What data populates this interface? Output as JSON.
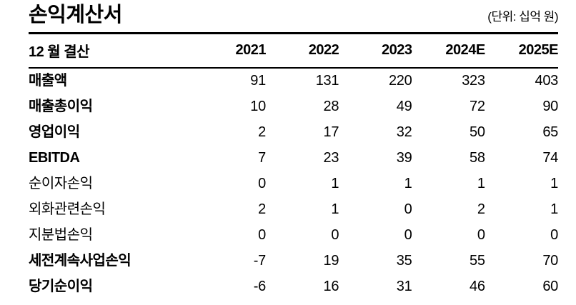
{
  "colors": {
    "background": "#ffffff",
    "text": "#000000",
    "rule_line": "#000000"
  },
  "document": {
    "title": "손익계산서",
    "unit_note": "(단위: 십억 원)"
  },
  "table": {
    "header": [
      "12 월 결산",
      "2021",
      "2022",
      "2023",
      "2024E",
      "2025E"
    ],
    "rows": [
      {
        "label": "매출액",
        "bold": true,
        "values": [
          "91",
          "131",
          "220",
          "323",
          "403"
        ]
      },
      {
        "label": "매출총이익",
        "bold": true,
        "values": [
          "10",
          "28",
          "49",
          "72",
          "90"
        ]
      },
      {
        "label": "영업이익",
        "bold": true,
        "values": [
          "2",
          "17",
          "32",
          "50",
          "65"
        ]
      },
      {
        "label": "EBITDA",
        "bold": true,
        "values": [
          "7",
          "23",
          "39",
          "58",
          "74"
        ]
      },
      {
        "label": "순이자손익",
        "bold": false,
        "values": [
          "0",
          "1",
          "1",
          "1",
          "1"
        ]
      },
      {
        "label": "외화관련손익",
        "bold": false,
        "values": [
          "2",
          "1",
          "0",
          "2",
          "1"
        ]
      },
      {
        "label": "지분법손익",
        "bold": false,
        "values": [
          "0",
          "0",
          "0",
          "0",
          "0"
        ]
      },
      {
        "label": "세전계속사업손익",
        "bold": true,
        "values": [
          "-7",
          "19",
          "35",
          "55",
          "70"
        ]
      },
      {
        "label": "당기순이익",
        "bold": true,
        "values": [
          "-6",
          "16",
          "31",
          "46",
          "60"
        ]
      }
    ]
  },
  "chart_data": {
    "type": "table",
    "title": "손익계산서",
    "unit": "(단위: 십억 원)",
    "categories": [
      "2021",
      "2022",
      "2023",
      "2024E",
      "2025E"
    ],
    "series": [
      {
        "name": "매출액",
        "values": [
          91,
          131,
          220,
          323,
          403
        ]
      },
      {
        "name": "매출총이익",
        "values": [
          10,
          28,
          49,
          72,
          90
        ]
      },
      {
        "name": "영업이익",
        "values": [
          2,
          17,
          32,
          50,
          65
        ]
      },
      {
        "name": "EBITDA",
        "values": [
          7,
          23,
          39,
          58,
          74
        ]
      },
      {
        "name": "순이자손익",
        "values": [
          0,
          1,
          1,
          1,
          1
        ]
      },
      {
        "name": "외화관련손익",
        "values": [
          2,
          1,
          0,
          2,
          1
        ]
      },
      {
        "name": "지분법손익",
        "values": [
          0,
          0,
          0,
          0,
          0
        ]
      },
      {
        "name": "세전계속사업손익",
        "values": [
          -7,
          19,
          35,
          55,
          70
        ]
      },
      {
        "name": "당기순이익",
        "values": [
          -6,
          16,
          31,
          46,
          60
        ]
      }
    ]
  }
}
